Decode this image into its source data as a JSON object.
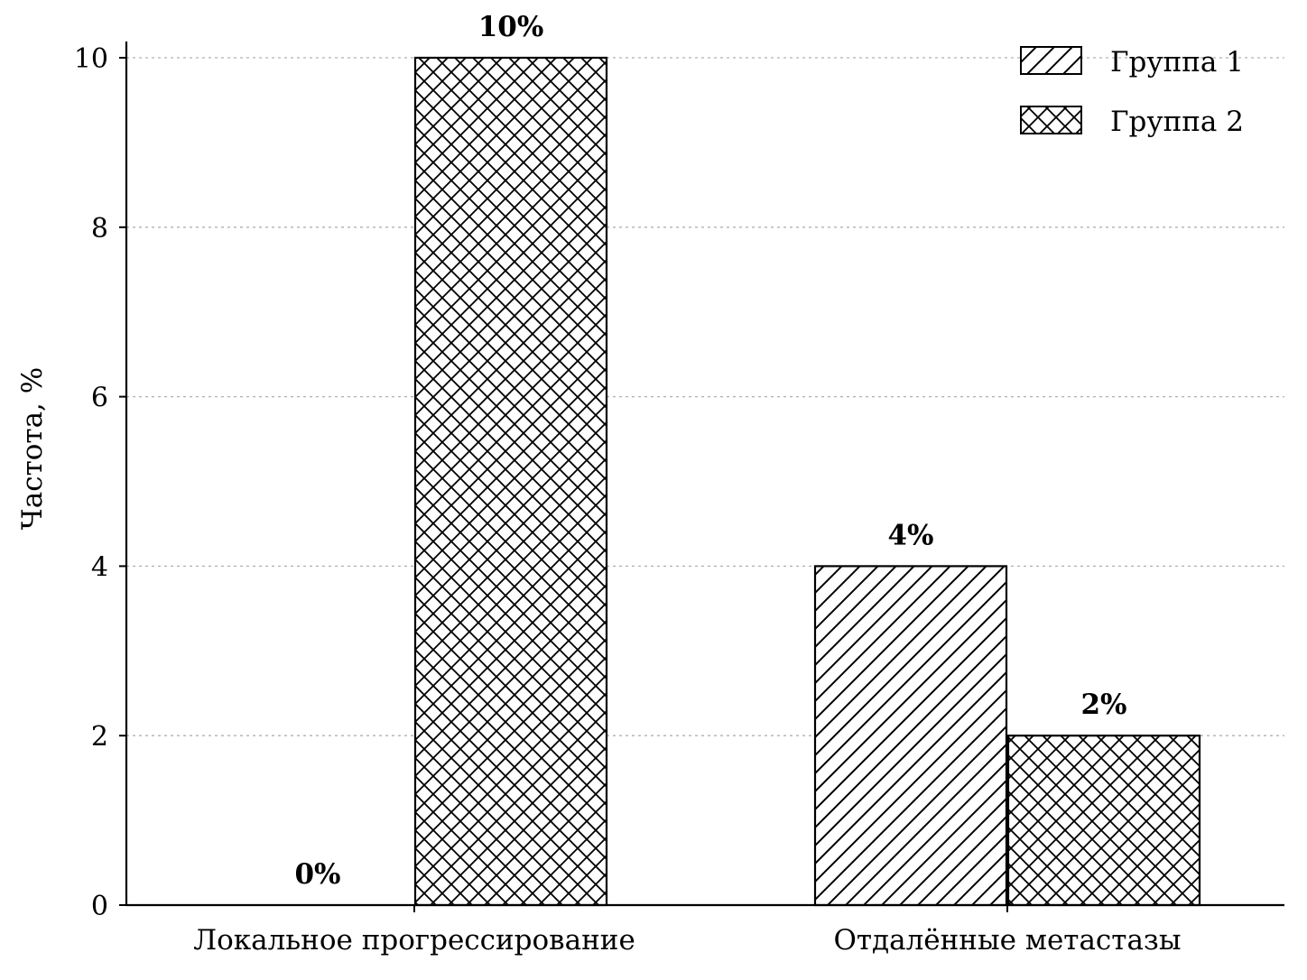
{
  "chart_data": {
    "type": "bar",
    "categories": [
      "Локальное прогрессирование",
      "Отдалённые метастазы"
    ],
    "series": [
      {
        "name": "Группа 1",
        "values": [
          0,
          4
        ],
        "labels": [
          "0%",
          "4%"
        ],
        "pattern": "diagonal"
      },
      {
        "name": "Группа 2",
        "values": [
          10,
          2
        ],
        "labels": [
          "10%",
          "2%"
        ],
        "pattern": "crosshatch"
      }
    ],
    "ylabel": "Частота, %",
    "ylim": [
      0,
      10
    ],
    "yticks": [
      "0",
      "2",
      "4",
      "6",
      "8",
      "10"
    ],
    "grid": "horizontal dotted",
    "legend": "top-right",
    "colors": {
      "fill": "#ffffff",
      "stroke": "#000000",
      "grid": "#b0b0b0"
    }
  }
}
